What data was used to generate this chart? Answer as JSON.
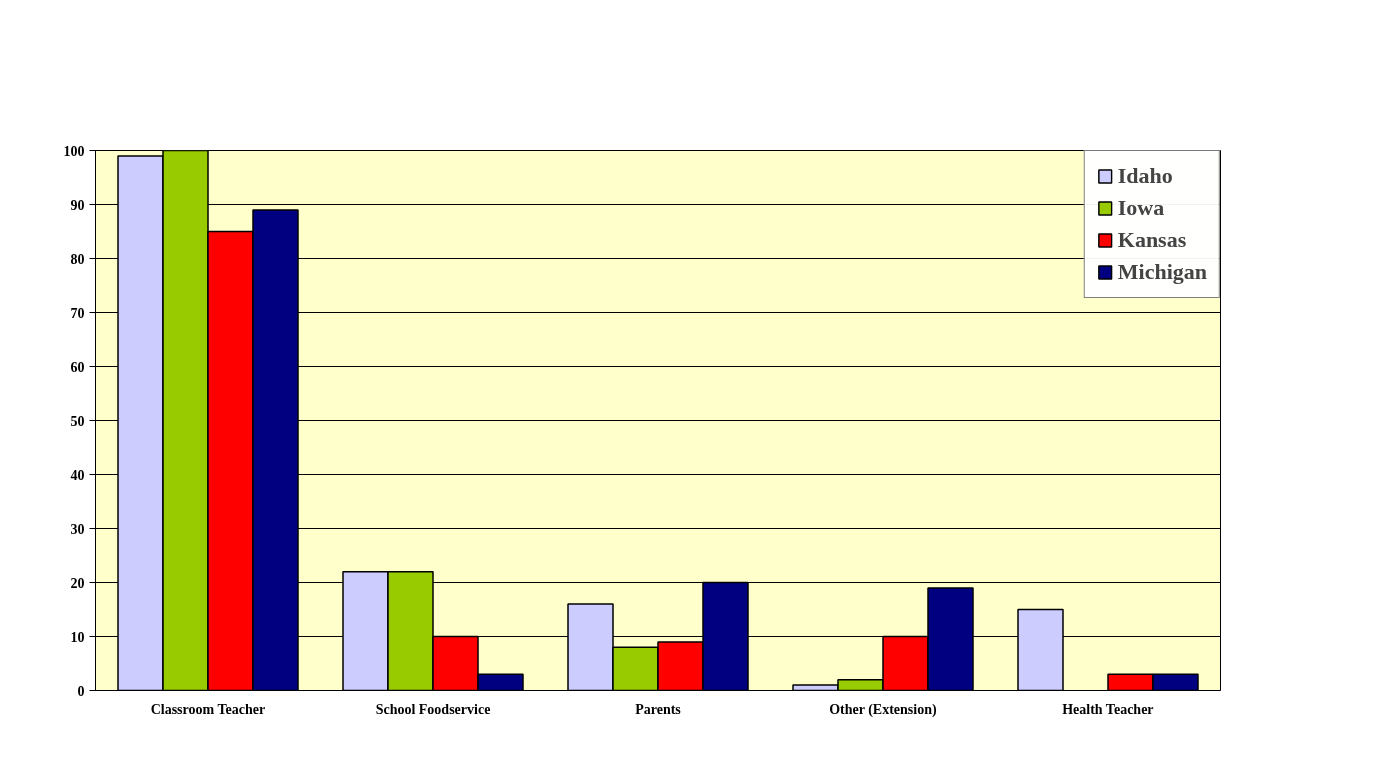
{
  "chart_data": {
    "type": "bar",
    "categories": [
      "Classroom Teacher",
      "School Foodservice",
      "Parents",
      "Other (Extension)",
      "Health Teacher"
    ],
    "series": [
      {
        "name": "Idaho",
        "color": "#ccccff",
        "values": [
          99,
          22,
          16,
          1,
          15
        ]
      },
      {
        "name": "Iowa",
        "color": "#99cc00",
        "values": [
          100,
          22,
          8,
          2,
          null
        ]
      },
      {
        "name": "Kansas",
        "color": "#ff0000",
        "values": [
          85,
          10,
          9,
          10,
          3
        ]
      },
      {
        "name": "Michigan",
        "color": "#000080",
        "values": [
          89,
          3,
          20,
          19,
          3
        ]
      }
    ],
    "ylim": [
      0,
      100
    ],
    "yticks": [
      0,
      10,
      20,
      30,
      40,
      50,
      60,
      70,
      80,
      90,
      100
    ],
    "grid": "y",
    "legend": "top right"
  }
}
